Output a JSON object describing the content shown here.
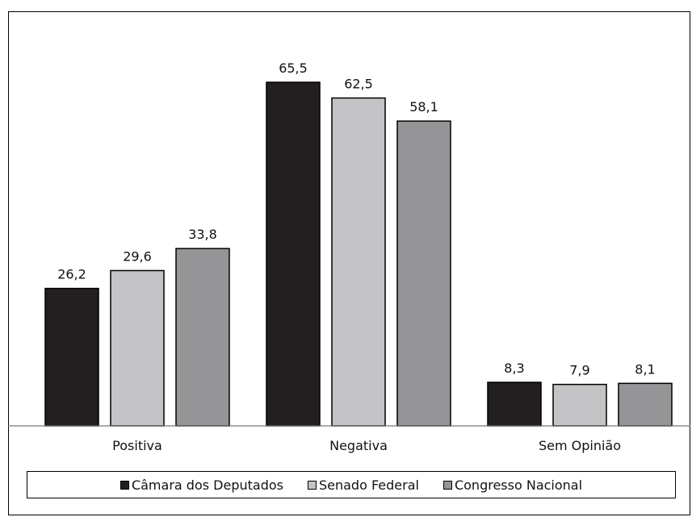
{
  "chart_data": {
    "type": "bar",
    "categories": [
      "Positiva",
      "Negativa",
      "Sem Opinião"
    ],
    "series": [
      {
        "name": "Câmara dos Deputados",
        "color": "#231f20",
        "values": [
          26.2,
          65.5,
          8.3
        ],
        "labels": [
          "26,2",
          "65,5",
          "8,3"
        ]
      },
      {
        "name": "Senado Federal",
        "color": "#c4c4c6",
        "values": [
          29.6,
          62.5,
          7.9
        ],
        "labels": [
          "29,6",
          "62,5",
          "7,9"
        ]
      },
      {
        "name": "Congresso Nacional",
        "color": "#959597",
        "values": [
          33.8,
          58.1,
          8.1
        ],
        "labels": [
          "33,8",
          "58,1",
          "8,1"
        ]
      }
    ],
    "ylim": [
      0,
      70
    ],
    "grid": false,
    "legend_position": "bottom"
  }
}
